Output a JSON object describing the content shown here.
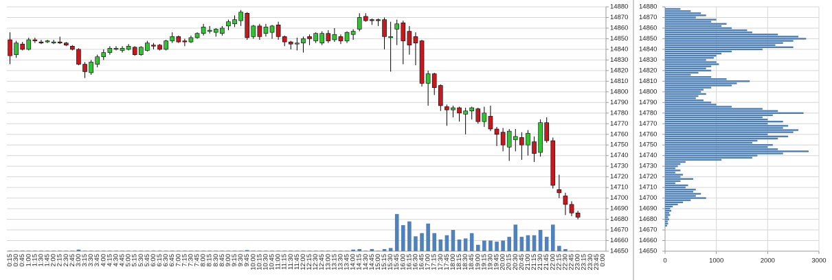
{
  "chart_data": [
    {
      "type": "candlestick",
      "categories": [
        "0:15",
        "0:30",
        "0:45",
        "1:00",
        "1:15",
        "1:30",
        "1:45",
        "2:00",
        "2:15",
        "2:30",
        "2:45",
        "3:00",
        "3:15",
        "3:30",
        "3:45",
        "4:00",
        "4:15",
        "4:30",
        "4:45",
        "5:00",
        "5:15",
        "5:30",
        "5:45",
        "6:00",
        "6:15",
        "6:30",
        "6:45",
        "7:00",
        "7:15",
        "7:30",
        "7:45",
        "8:00",
        "8:15",
        "8:30",
        "8:45",
        "9:00",
        "9:15",
        "9:30",
        "9:45",
        "10:00",
        "10:15",
        "10:30",
        "10:45",
        "11:00",
        "11:15",
        "11:30",
        "11:45",
        "12:00",
        "12:15",
        "12:30",
        "12:45",
        "13:00",
        "13:15",
        "13:30",
        "13:45",
        "14:00",
        "14:15",
        "14:30",
        "14:45",
        "15:00",
        "15:15",
        "15:30",
        "15:45",
        "16:00",
        "16:15",
        "16:30",
        "16:45",
        "17:00",
        "17:15",
        "17:30",
        "17:45",
        "18:00",
        "18:15",
        "18:30",
        "18:45",
        "19:00",
        "19:15",
        "19:30",
        "19:45",
        "20:00",
        "20:15",
        "20:30",
        "20:45",
        "21:00",
        "21:15",
        "21:30",
        "21:45",
        "22:00",
        "22:15",
        "22:30",
        "22:45",
        "23:00",
        "23:15",
        "23:30",
        "23:45",
        "0:00"
      ],
      "open": [
        14849,
        14835,
        14845,
        14840,
        14849,
        14847,
        14847,
        14846,
        14847,
        14846,
        14843,
        14840,
        14826,
        14818,
        14826,
        14833,
        14837,
        14840,
        14839,
        14840,
        14842,
        14835,
        14839,
        14844,
        14844,
        14840,
        14848,
        14852,
        14848,
        14847,
        14851,
        14855,
        14857,
        14856,
        14855,
        14862,
        14864,
        14867,
        14874,
        14852,
        14862,
        14855,
        14856,
        14863,
        14852,
        14847,
        14845,
        14846,
        14852,
        14848,
        14846,
        14855,
        14849,
        14852,
        14848,
        14854,
        14859,
        14871,
        14868,
        14868,
        14868,
        14851,
        14859,
        14865,
        14857,
        14852,
        14848,
        14808,
        14817,
        14806,
        14786,
        14783,
        14785,
        14779,
        14782,
        14784,
        14772,
        14777,
        14765,
        14762,
        14748,
        14755,
        14757,
        14750,
        14753,
        14743,
        14771,
        14754,
        14708,
        14702,
        14694,
        14686,
        null,
        null,
        null,
        null
      ],
      "high": [
        14856,
        14848,
        14847,
        14851,
        14851,
        14849,
        14849,
        14849,
        14852,
        14847,
        14844,
        14841,
        14828,
        14830,
        14835,
        14840,
        14843,
        14843,
        14843,
        14845,
        14843,
        14843,
        14848,
        14846,
        14845,
        14849,
        14856,
        14853,
        14850,
        14853,
        14856,
        14864,
        14862,
        14860,
        14862,
        14868,
        14872,
        14877,
        14875,
        14863,
        14864,
        14864,
        14863,
        14866,
        14853,
        14848,
        14851,
        14852,
        14854,
        14856,
        14857,
        14858,
        14860,
        14854,
        14857,
        14859,
        14874,
        14874,
        14869,
        14869,
        14870,
        14866,
        14868,
        14867,
        14862,
        14856,
        14849,
        14820,
        14818,
        14807,
        14788,
        14787,
        14786,
        14785,
        14786,
        14785,
        14786,
        14787,
        14767,
        14766,
        14765,
        14765,
        14762,
        14764,
        14758,
        14774,
        14776,
        14757,
        14722,
        14705,
        14697,
        14688,
        null,
        null,
        null,
        null
      ],
      "low": [
        14826,
        14832,
        14839,
        14839,
        14846,
        14845,
        14846,
        14845,
        14845,
        14843,
        14839,
        14825,
        14813,
        14816,
        14823,
        14830,
        14835,
        14839,
        14837,
        14839,
        14834,
        14834,
        14838,
        14840,
        14839,
        14839,
        14846,
        14846,
        14843,
        14846,
        14850,
        14853,
        14855,
        14852,
        14853,
        14858,
        14861,
        14862,
        14849,
        14850,
        14849,
        14852,
        14850,
        14849,
        14843,
        14840,
        14839,
        14837,
        14844,
        14846,
        14844,
        14846,
        14847,
        14845,
        14846,
        14849,
        14857,
        14866,
        14863,
        14862,
        14840,
        14819,
        14844,
        14826,
        14835,
        14825,
        14805,
        14787,
        14797,
        14782,
        14768,
        14776,
        14772,
        14760,
        14774,
        14770,
        14767,
        14763,
        14749,
        14744,
        14735,
        14744,
        14736,
        14740,
        14734,
        14739,
        14752,
        14709,
        14700,
        14684,
        14683,
        14680,
        null,
        null,
        null,
        null
      ],
      "close": [
        14834,
        14846,
        14840,
        14849,
        14848,
        14846,
        14848,
        14847,
        14846,
        14844,
        14840,
        14826,
        14819,
        14828,
        14833,
        14837,
        14841,
        14841,
        14841,
        14843,
        14835,
        14842,
        14846,
        14843,
        14840,
        14848,
        14852,
        14847,
        14847,
        14851,
        14855,
        14861,
        14858,
        14859,
        14860,
        14866,
        14868,
        14875,
        14851,
        14862,
        14852,
        14861,
        14862,
        14852,
        14847,
        14845,
        14846,
        14850,
        14850,
        14855,
        14855,
        14848,
        14854,
        14848,
        14856,
        14857,
        14870,
        14867,
        14867,
        14867,
        14852,
        14852,
        14864,
        14848,
        14844,
        14846,
        14808,
        14817,
        14804,
        14787,
        14783,
        14785,
        14780,
        14782,
        14785,
        14772,
        14780,
        14765,
        14760,
        14750,
        14763,
        14758,
        14750,
        14761,
        14742,
        14771,
        14754,
        14712,
        14705,
        14694,
        14686,
        14682,
        null,
        null,
        null,
        null
      ],
      "volume": {
        "color": "#4f81bd",
        "values": [
          14650.5,
          14650.5,
          14650.5,
          14650.5,
          14650.5,
          14650.5,
          14650.5,
          14650.5,
          14650.5,
          14650.5,
          14650.5,
          14651.5,
          14650.5,
          14650.5,
          14650.5,
          14650.5,
          14650.5,
          14650.5,
          14650.5,
          14650.5,
          14650.5,
          14650.5,
          14650.5,
          14650.5,
          14650.5,
          14650.5,
          14650.5,
          14650.5,
          14650.5,
          14650.5,
          14650.5,
          14650.5,
          14650.5,
          14650.5,
          14650.5,
          14650.5,
          14650.5,
          14650.5,
          14651,
          14650.5,
          14650.5,
          14650.5,
          14650.5,
          14650.5,
          14650.5,
          14650.5,
          14650.5,
          14650.5,
          14650.5,
          14650.5,
          14650.5,
          14650.5,
          14650.5,
          14650.5,
          14650.5,
          14651.5,
          14652,
          14650.5,
          14652,
          14650.5,
          14652,
          14653,
          14685,
          14674.5,
          14678,
          14664,
          14667,
          14676,
          14667,
          14661,
          14665,
          14670,
          14661,
          14662,
          14667,
          14656,
          14660,
          14660,
          14659,
          14660,
          14663.5,
          14675,
          14663.5,
          14665,
          14665,
          14670,
          14663.5,
          14675,
          14655,
          14652,
          14650.5,
          14650.5,
          null,
          null,
          null,
          null
        ]
      },
      "up_color": "#33c233",
      "down_color": "#c41a1f",
      "ylim": [
        14650,
        14880
      ],
      "yticks": [
        14650,
        14660,
        14670,
        14680,
        14690,
        14700,
        14710,
        14720,
        14730,
        14740,
        14750,
        14760,
        14770,
        14780,
        14790,
        14800,
        14810,
        14820,
        14830,
        14840,
        14850,
        14860,
        14870,
        14880
      ],
      "grid": true
    },
    {
      "type": "barh",
      "y": [
        14878,
        14876,
        14874,
        14872,
        14870,
        14868,
        14866,
        14864,
        14862,
        14860,
        14858,
        14856,
        14854,
        14852,
        14850,
        14848,
        14846,
        14844,
        14842,
        14840,
        14838,
        14836,
        14834,
        14832,
        14830,
        14828,
        14826,
        14824,
        14822,
        14820,
        14818,
        14816,
        14814,
        14812,
        14810,
        14808,
        14806,
        14804,
        14802,
        14800,
        14798,
        14796,
        14794,
        14792,
        14790,
        14788,
        14786,
        14784,
        14782,
        14780,
        14778,
        14776,
        14774,
        14772,
        14770,
        14768,
        14766,
        14764,
        14762,
        14760,
        14758,
        14756,
        14754,
        14752,
        14750,
        14748,
        14746,
        14744,
        14742,
        14740,
        14738,
        14736,
        14734,
        14732,
        14730,
        14728,
        14726,
        14724,
        14722,
        14720,
        14718,
        14716,
        14714,
        14712,
        14710,
        14708,
        14706,
        14704,
        14702,
        14700,
        14698,
        14696,
        14694,
        14692,
        14690,
        14688,
        14686,
        14684,
        14682,
        14680,
        14678,
        14676,
        14674
      ],
      "values": [
        300,
        500,
        700,
        800,
        600,
        1000,
        900,
        1200,
        1100,
        1300,
        1600,
        1700,
        2200,
        2600,
        2750,
        2500,
        2300,
        2150,
        2500,
        1900,
        1300,
        1100,
        1000,
        950,
        800,
        1000,
        1050,
        900,
        800,
        900,
        650,
        500,
        900,
        1200,
        1650,
        1400,
        1300,
        900,
        750,
        700,
        800,
        650,
        600,
        750,
        900,
        1000,
        1300,
        1900,
        2200,
        2700,
        2100,
        1900,
        2000,
        2300,
        2000,
        2400,
        2300,
        2600,
        2500,
        2000,
        2400,
        2200,
        1800,
        1700,
        2100,
        2000,
        2200,
        2800,
        2300,
        1800,
        1700,
        1100,
        400,
        300,
        250,
        200,
        300,
        200,
        350,
        300,
        550,
        300,
        200,
        450,
        400,
        600,
        550,
        700,
        600,
        800,
        500,
        350,
        250,
        150,
        100,
        120,
        80,
        100,
        60,
        80,
        50,
        60,
        40
      ],
      "color": "#4a7eb5",
      "xlim": [
        0,
        3000
      ],
      "xticks": [
        0,
        1000,
        2000,
        3000
      ],
      "ylim": [
        14650,
        14880
      ],
      "yticks": [
        14650,
        14660,
        14670,
        14680,
        14690,
        14700,
        14710,
        14720,
        14730,
        14740,
        14750,
        14760,
        14770,
        14780,
        14790,
        14800,
        14810,
        14820,
        14830,
        14840,
        14850,
        14860,
        14870,
        14880
      ],
      "grid": true
    }
  ]
}
